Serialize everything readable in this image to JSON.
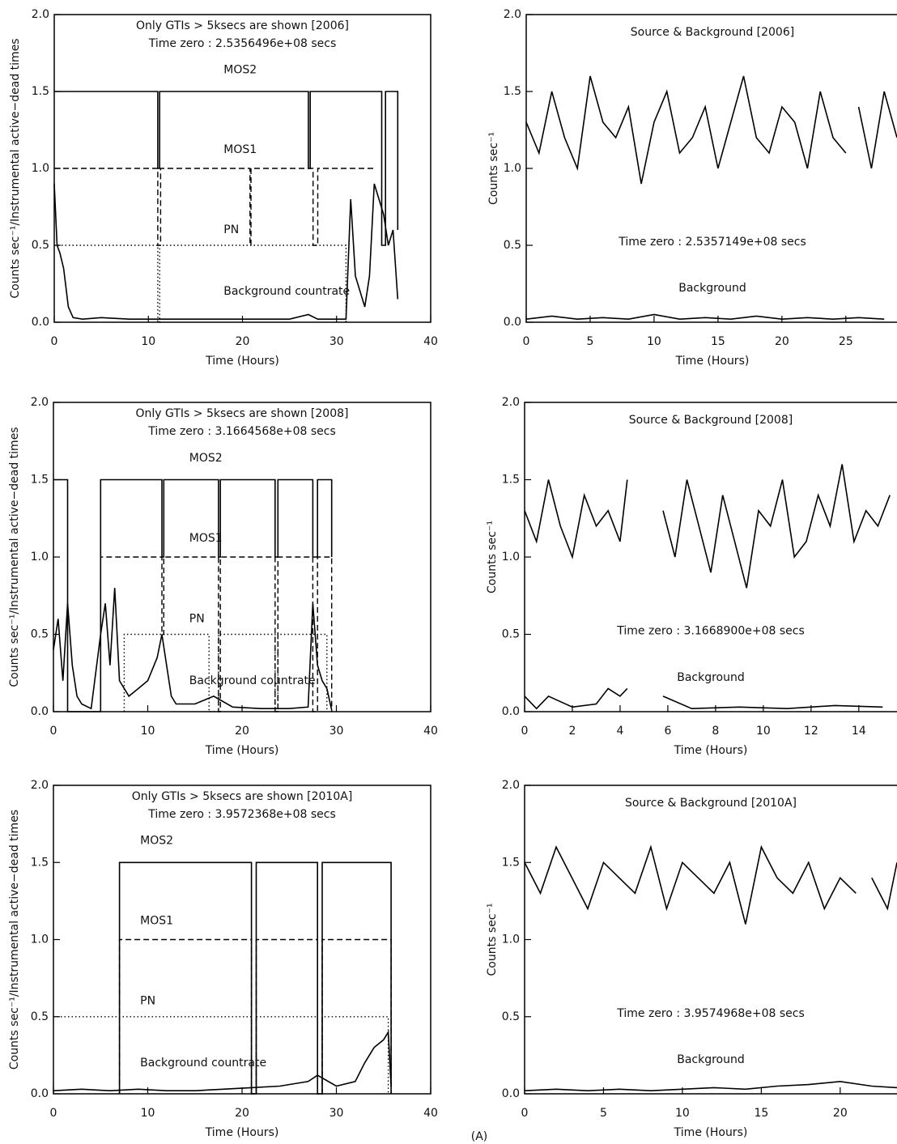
{
  "chart_data": [
    {
      "type": "line",
      "title": "Only GTIs > 5ksecs are shown [2006]",
      "subtitle": "Time zero : 2.5356496e+08 secs",
      "xlabel": "Time (Hours)",
      "ylabel": "Counts sec⁻¹/Instrumental active−dead times",
      "xlim": [
        0,
        40
      ],
      "ylim": [
        0,
        2
      ],
      "xticks": [
        0,
        10,
        20,
        30,
        40
      ],
      "yticks": [
        {
          "value": 0,
          "label": "0.0"
        },
        {
          "value": 0.5,
          "label": "0.5"
        },
        {
          "value": 1,
          "label": "1.0"
        },
        {
          "value": 1.5,
          "label": "1.5"
        },
        {
          "value": 2,
          "label": "2.0"
        }
      ],
      "series": [
        {
          "name": "MOS2",
          "color": "#000000",
          "dash": "solid",
          "x": [
            0,
            11,
            11,
            11.2,
            11.2,
            27,
            27,
            27.2,
            27.2,
            34.8,
            34.8,
            35.2,
            35.2,
            36.5,
            36.5
          ],
          "values": [
            1.5,
            1.5,
            1.0,
            1.0,
            1.5,
            1.5,
            1.0,
            1.0,
            1.5,
            1.5,
            0.5,
            0.5,
            1.5,
            1.5,
            0.6
          ]
        },
        {
          "name": "MOS1",
          "color": "#000000",
          "dash": "dashed",
          "x": [
            0,
            11,
            11,
            11.3,
            11.3,
            20.8,
            20.8,
            20.9,
            20.9,
            27.5,
            27.5,
            28,
            28,
            34
          ],
          "values": [
            1.0,
            1.0,
            0.5,
            0.5,
            1.0,
            1.0,
            0.5,
            0.5,
            1.0,
            1.0,
            0.5,
            0.5,
            1.0,
            1.0
          ]
        },
        {
          "name": "PN",
          "color": "#000000",
          "dash": "dotted",
          "x": [
            0,
            11,
            11,
            11.2,
            11.2,
            31,
            31
          ],
          "values": [
            0.5,
            0.5,
            0,
            0,
            0.5,
            0.5,
            0
          ]
        },
        {
          "name": "Background countrate",
          "color": "#000000",
          "dash": "solid",
          "x": [
            0,
            0.3,
            0.6,
            1,
            1.5,
            2,
            3,
            5,
            8,
            11,
            15,
            20,
            25,
            27,
            28,
            31,
            31.5,
            32,
            33,
            33.5,
            34,
            35,
            35.5,
            36,
            36.5
          ],
          "values": [
            0.9,
            0.5,
            0.45,
            0.35,
            0.1,
            0.03,
            0.02,
            0.03,
            0.02,
            0.02,
            0.02,
            0.02,
            0.02,
            0.05,
            0.02,
            0.02,
            0.8,
            0.3,
            0.1,
            0.3,
            0.9,
            0.7,
            0.5,
            0.6,
            0.15
          ]
        }
      ]
    },
    {
      "type": "line",
      "title": "Source & Background [2006]",
      "subtitle": "Time zero : 2.5357149e+08 secs",
      "xlabel": "Time (Hours)",
      "ylabel": "Counts sec⁻¹",
      "xlim": [
        0,
        29
      ],
      "ylim": [
        0,
        2
      ],
      "xticks": [
        0,
        5,
        10,
        15,
        20,
        25
      ],
      "yticks": [
        {
          "value": 0,
          "label": "0.0"
        },
        {
          "value": 0.5,
          "label": "0.5"
        },
        {
          "value": 1,
          "label": "1.0"
        },
        {
          "value": 1.5,
          "label": "1.5"
        },
        {
          "value": 2,
          "label": "2.0"
        }
      ],
      "series": [
        {
          "color": "#000000",
          "dash": "solid",
          "x": [
            0,
            1,
            2,
            3,
            4,
            5,
            6,
            7,
            8,
            9,
            10,
            11,
            12,
            13,
            14,
            15,
            16,
            17,
            18,
            19,
            20,
            21,
            22,
            23,
            24,
            25,
            25.5,
            26,
            27,
            28,
            29
          ],
          "values": [
            1.3,
            1.1,
            1.5,
            1.2,
            1.0,
            1.6,
            1.3,
            1.2,
            1.4,
            0.9,
            1.3,
            1.5,
            1.1,
            1.2,
            1.4,
            1.0,
            1.3,
            1.6,
            1.2,
            1.1,
            1.4,
            1.3,
            1.0,
            1.5,
            1.2,
            1.1,
            null,
            1.4,
            1.0,
            1.5,
            1.2
          ]
        },
        {
          "name": "Background",
          "color": "#000000",
          "dash": "solid",
          "x": [
            0,
            2,
            4,
            6,
            8,
            10,
            12,
            14,
            16,
            18,
            20,
            22,
            24,
            26,
            28
          ],
          "values": [
            0.02,
            0.04,
            0.02,
            0.03,
            0.02,
            0.05,
            0.02,
            0.03,
            0.02,
            0.04,
            0.02,
            0.03,
            0.02,
            0.03,
            0.02
          ]
        }
      ]
    },
    {
      "type": "line",
      "title": "Only GTIs > 5ksecs are shown [2008]",
      "subtitle": "Time zero : 3.1664568e+08 secs",
      "xlabel": "Time (Hours)",
      "ylabel": "Counts sec⁻¹/Instrumental active−dead times",
      "xlim": [
        0,
        40
      ],
      "ylim": [
        0,
        2
      ],
      "xticks": [
        0,
        10,
        20,
        30,
        40
      ],
      "yticks": [
        {
          "value": 0,
          "label": "0.0"
        },
        {
          "value": 0.5,
          "label": "0.5"
        },
        {
          "value": 1,
          "label": "1.0"
        },
        {
          "value": 1.5,
          "label": "1.5"
        },
        {
          "value": 2,
          "label": "2.0"
        }
      ],
      "series": [
        {
          "name": "MOS2",
          "color": "#000000",
          "dash": "solid",
          "x": [
            0,
            1.5,
            1.5,
            5,
            5,
            11.5,
            11.5,
            11.7,
            11.7,
            17.5,
            17.5,
            17.7,
            17.7,
            23.5,
            23.5,
            23.8,
            23.8,
            27.5,
            27.5,
            28,
            28,
            29.5,
            29.5
          ],
          "values": [
            1.5,
            1.5,
            0,
            0,
            1.5,
            1.5,
            1.0,
            1.0,
            1.5,
            1.5,
            1.0,
            1.0,
            1.5,
            1.5,
            1.0,
            1.0,
            1.5,
            1.5,
            1.0,
            1.0,
            1.5,
            1.5,
            1.0
          ]
        },
        {
          "name": "MOS1",
          "color": "#000000",
          "dash": "dashed",
          "x": [
            5,
            5,
            11.5,
            11.5,
            11.7,
            11.7,
            17.5,
            17.5,
            17.7,
            17.7,
            23.5,
            23.5,
            23.8,
            23.8,
            27.5,
            27.5,
            28,
            28,
            29.5,
            29.5
          ],
          "values": [
            0,
            1.0,
            1.0,
            0.5,
            0.5,
            1.0,
            1.0,
            0,
            0,
            1.0,
            1.0,
            0,
            0,
            1.0,
            1.0,
            0,
            0,
            1.0,
            1.0,
            0
          ]
        },
        {
          "name": "PN",
          "color": "#000000",
          "dash": "dotted",
          "x": [
            7.5,
            7.5,
            16.5,
            16.5,
            17.5,
            17.5,
            23.5,
            23.5,
            23.8,
            23.8,
            29,
            29
          ],
          "values": [
            0,
            0.5,
            0.5,
            0,
            0,
            0.5,
            0.5,
            0,
            0,
            0.5,
            0.5,
            0
          ]
        },
        {
          "name": "Background countrate",
          "color": "#000000",
          "dash": "solid",
          "x": [
            0,
            0.5,
            1,
            1.5,
            2,
            2.5,
            3,
            4,
            5,
            5.5,
            6,
            6.5,
            7,
            8,
            9,
            10,
            11,
            11.5,
            12,
            12.5,
            13,
            15,
            17,
            19,
            22,
            25,
            27,
            27.5,
            28,
            28.5,
            29,
            29.5
          ],
          "values": [
            0.4,
            0.6,
            0.2,
            0.7,
            0.3,
            0.1,
            0.05,
            0.02,
            0.5,
            0.7,
            0.3,
            0.8,
            0.2,
            0.1,
            0.15,
            0.2,
            0.35,
            0.5,
            0.3,
            0.1,
            0.05,
            0.05,
            0.1,
            0.03,
            0.02,
            0.02,
            0.03,
            0.7,
            0.3,
            0.2,
            0.15,
            0.01
          ]
        }
      ]
    },
    {
      "type": "line",
      "title": "Source & Background [2008]",
      "subtitle": "Time zero : 3.1668900e+08 secs",
      "xlabel": "Time (Hours)",
      "ylabel": "Counts sec⁻¹",
      "xlim": [
        0,
        15.6
      ],
      "ylim": [
        0,
        2
      ],
      "xticks": [
        0,
        2,
        4,
        6,
        8,
        10,
        12,
        14
      ],
      "yticks": [
        {
          "value": 0,
          "label": "0.0"
        },
        {
          "value": 0.5,
          "label": "0.5"
        },
        {
          "value": 1,
          "label": "1.0"
        },
        {
          "value": 1.5,
          "label": "1.5"
        },
        {
          "value": 2,
          "label": "2.0"
        }
      ],
      "series": [
        {
          "color": "#000000",
          "dash": "solid",
          "x": [
            0,
            0.5,
            1,
            1.5,
            2,
            2.5,
            3,
            3.5,
            4,
            4.3,
            5,
            5.8,
            6.3,
            6.8,
            7.3,
            7.8,
            8.3,
            8.8,
            9.3,
            9.8,
            10.3,
            10.8,
            11.3,
            11.8,
            12.3,
            12.8,
            13.3,
            13.8,
            14.3,
            14.8,
            15.3
          ],
          "values": [
            1.3,
            1.1,
            1.5,
            1.2,
            1.0,
            1.4,
            1.2,
            1.3,
            1.1,
            1.5,
            null,
            1.3,
            1.0,
            1.5,
            1.2,
            0.9,
            1.4,
            1.1,
            0.8,
            1.3,
            1.2,
            1.5,
            1.0,
            1.1,
            1.4,
            1.2,
            1.6,
            1.1,
            1.3,
            1.2,
            1.4
          ]
        },
        {
          "name": "Background",
          "color": "#000000",
          "dash": "solid",
          "x": [
            0,
            0.5,
            1,
            2,
            3,
            3.5,
            4,
            4.3,
            5,
            5.8,
            7,
            9,
            11,
            13,
            15
          ],
          "values": [
            0.1,
            0.02,
            0.1,
            0.03,
            0.05,
            0.15,
            0.1,
            0.15,
            null,
            0.1,
            0.02,
            0.03,
            0.02,
            0.04,
            0.03
          ]
        }
      ]
    },
    {
      "type": "line",
      "title": "Only GTIs > 5ksecs are shown [2010A]",
      "subtitle": "Time zero : 3.9572368e+08 secs",
      "xlabel": "Time (Hours)",
      "ylabel": "Counts sec⁻¹/Instrumental active−dead times",
      "xlim": [
        0,
        40
      ],
      "ylim": [
        0,
        2
      ],
      "xticks": [
        0,
        10,
        20,
        30,
        40
      ],
      "yticks": [
        {
          "value": 0,
          "label": "0.0"
        },
        {
          "value": 0.5,
          "label": "0.5"
        },
        {
          "value": 1,
          "label": "1.0"
        },
        {
          "value": 1.5,
          "label": "1.5"
        },
        {
          "value": 2,
          "label": "2.0"
        }
      ],
      "series": [
        {
          "name": "MOS2",
          "color": "#000000",
          "dash": "solid",
          "x": [
            7,
            7,
            21,
            21,
            21.5,
            21.5,
            28,
            28,
            28.5,
            28.5,
            35.8,
            35.8
          ],
          "values": [
            0,
            1.5,
            1.5,
            0,
            0,
            1.5,
            1.5,
            0,
            0,
            1.5,
            1.5,
            0
          ]
        },
        {
          "name": "MOS1",
          "color": "#000000",
          "dash": "dashed",
          "x": [
            7,
            7,
            21,
            21,
            21.5,
            21.5,
            28,
            28,
            28.5,
            28.5,
            35.8,
            35.8
          ],
          "values": [
            0,
            1.0,
            1.0,
            0,
            0,
            1.0,
            1.0,
            0,
            0,
            1.0,
            1.0,
            0
          ]
        },
        {
          "name": "PN",
          "color": "#000000",
          "dash": "dotted",
          "x": [
            0,
            21,
            21,
            21.5,
            21.5,
            28,
            28,
            28.5,
            28.5,
            35.5,
            35.5
          ],
          "values": [
            0.5,
            0.5,
            0,
            0,
            0.5,
            0.5,
            0,
            0,
            0.5,
            0.5,
            0
          ]
        },
        {
          "name": "Background countrate",
          "color": "#000000",
          "dash": "solid",
          "x": [
            0,
            3,
            6,
            9,
            12,
            15,
            18,
            21,
            24,
            27,
            28,
            30,
            32,
            33,
            34,
            35,
            35.5,
            35.8
          ],
          "values": [
            0.02,
            0.03,
            0.02,
            0.03,
            0.02,
            0.02,
            0.03,
            0.04,
            0.05,
            0.08,
            0.12,
            0.05,
            0.08,
            0.2,
            0.3,
            0.35,
            0.4,
            0.05
          ]
        }
      ]
    },
    {
      "type": "line",
      "title": "Source & Background [2010A]",
      "subtitle": "Time zero : 3.9574968e+08 secs",
      "xlabel": "Time (Hours)",
      "ylabel": "Counts sec⁻¹",
      "xlim": [
        0,
        23.6
      ],
      "ylim": [
        0,
        2
      ],
      "xticks": [
        0,
        5,
        10,
        15,
        20
      ],
      "yticks": [
        {
          "value": 0,
          "label": "0.0"
        },
        {
          "value": 0.5,
          "label": "0.5"
        },
        {
          "value": 1,
          "label": "1.0"
        },
        {
          "value": 1.5,
          "label": "1.5"
        },
        {
          "value": 2,
          "label": "2.0"
        }
      ],
      "series": [
        {
          "color": "#000000",
          "dash": "solid",
          "x": [
            0,
            1,
            2,
            3,
            4,
            5,
            6,
            7,
            8,
            9,
            10,
            11,
            12,
            13,
            14,
            15,
            16,
            17,
            18,
            19,
            20,
            21,
            21.5,
            22,
            23,
            23.6
          ],
          "values": [
            1.5,
            1.3,
            1.6,
            1.4,
            1.2,
            1.5,
            1.4,
            1.3,
            1.6,
            1.2,
            1.5,
            1.4,
            1.3,
            1.5,
            1.1,
            1.6,
            1.4,
            1.3,
            1.5,
            1.2,
            1.4,
            1.3,
            null,
            1.4,
            1.2,
            1.5
          ]
        },
        {
          "name": "Background",
          "color": "#000000",
          "dash": "solid",
          "x": [
            0,
            2,
            4,
            6,
            8,
            10,
            12,
            14,
            16,
            18,
            20,
            22,
            23.6
          ],
          "values": [
            0.02,
            0.03,
            0.02,
            0.03,
            0.02,
            0.03,
            0.04,
            0.03,
            0.05,
            0.06,
            0.08,
            0.05,
            0.04
          ]
        }
      ]
    }
  ],
  "caption": "(A)"
}
